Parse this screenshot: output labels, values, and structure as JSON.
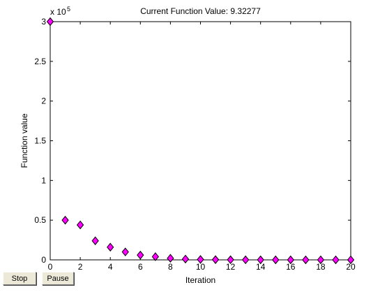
{
  "buttons": {
    "stop": "Stop",
    "pause": "Pause"
  },
  "chart_data": {
    "type": "scatter",
    "title": "Current Function Value: 9.32277",
    "xlabel": "Iteration",
    "ylabel": "Function value",
    "exponent_label": "x 10",
    "exponent_power": "5",
    "xlim": [
      0,
      20
    ],
    "ylim": [
      0,
      3
    ],
    "xticks": [
      0,
      2,
      4,
      6,
      8,
      10,
      12,
      14,
      16,
      18,
      20
    ],
    "yticks": [
      0,
      0.5,
      1,
      1.5,
      2,
      2.5,
      3
    ],
    "ytick_labels": [
      "0",
      "0.5",
      "1",
      "1.5",
      "2",
      "2.5",
      "3"
    ],
    "marker": "diamond",
    "marker_color": "#ff00ff",
    "series": [
      {
        "x": [
          0,
          1,
          2,
          3,
          4,
          5,
          6,
          7,
          8,
          9,
          10,
          11,
          12,
          13,
          14,
          15,
          16,
          17,
          18,
          19,
          20
        ],
        "values": [
          3.0,
          0.5,
          0.44,
          0.24,
          0.16,
          0.1,
          0.06,
          0.04,
          0.02,
          0.01,
          0.005,
          0.003,
          0.002,
          0.001,
          0.0008,
          0.0005,
          0.0003,
          0.0002,
          0.0001,
          0.0001,
          0.0001
        ]
      }
    ]
  }
}
